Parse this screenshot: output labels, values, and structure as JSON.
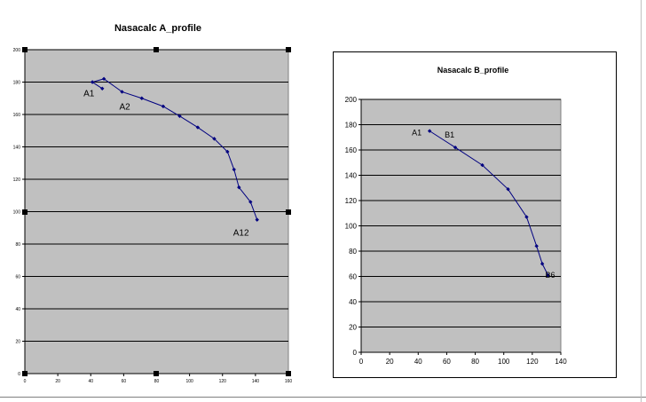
{
  "chart_data": [
    {
      "type": "line",
      "title": "Nasacalc A_profile",
      "xlabel": "",
      "ylabel": "",
      "xlim": [
        0,
        160
      ],
      "ylim": [
        0,
        200
      ],
      "x_ticks": [
        0,
        20,
        40,
        60,
        80,
        100,
        120,
        140,
        160
      ],
      "y_ticks": [
        0,
        20,
        40,
        60,
        80,
        100,
        120,
        140,
        160,
        180,
        200
      ],
      "grid": "horizontal",
      "plot_background": "#c0c0c0",
      "series_color": "#000080",
      "series": [
        {
          "points": [
            [
              47,
              176
            ],
            [
              41,
              180
            ],
            [
              48,
              182
            ],
            [
              59,
              174
            ],
            [
              71,
              170
            ],
            [
              84,
              165
            ],
            [
              94,
              159
            ],
            [
              105,
              152
            ],
            [
              115,
              145
            ],
            [
              123,
              137
            ],
            [
              127,
              126
            ],
            [
              130,
              115
            ],
            [
              137,
              106
            ],
            [
              141,
              95
            ]
          ]
        }
      ],
      "point_labels": [
        {
          "text": "A1",
          "x": 41,
          "y": 180
        },
        {
          "text": "A2",
          "x": 59,
          "y": 174
        },
        {
          "text": "A12",
          "x": 141,
          "y": 95
        }
      ]
    },
    {
      "type": "line",
      "title": "Nasacalc B_profile",
      "xlabel": "",
      "ylabel": "",
      "xlim": [
        0,
        140
      ],
      "ylim": [
        0,
        200
      ],
      "x_ticks": [
        0,
        20,
        40,
        60,
        80,
        100,
        120,
        140
      ],
      "y_ticks": [
        0,
        20,
        40,
        60,
        80,
        100,
        120,
        140,
        160,
        180,
        200
      ],
      "grid": "horizontal",
      "plot_background": "#c0c0c0",
      "series_color": "#000080",
      "series": [
        {
          "points": [
            [
              48,
              175
            ],
            [
              66,
              162
            ],
            [
              85,
              148
            ],
            [
              103,
              129
            ],
            [
              116,
              107
            ],
            [
              123,
              84
            ],
            [
              127,
              70
            ],
            [
              131,
              61
            ]
          ]
        }
      ],
      "point_labels": [
        {
          "text": "A1",
          "x": 48,
          "y": 175
        },
        {
          "text": "B1",
          "x": 66,
          "y": 162
        },
        {
          "text": "B6",
          "x": 131,
          "y": 61
        }
      ]
    }
  ]
}
